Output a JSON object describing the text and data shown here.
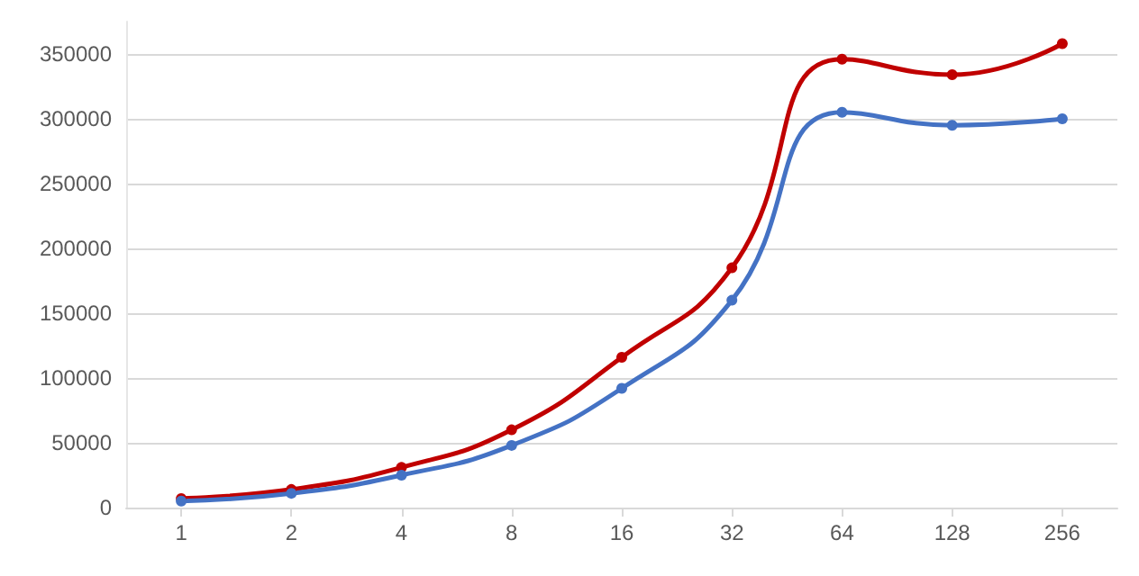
{
  "chart_data": {
    "type": "line",
    "categories": [
      "1",
      "2",
      "4",
      "8",
      "16",
      "32",
      "64",
      "128",
      "256"
    ],
    "series": [
      {
        "color": "#c00000",
        "values": [
          7000,
          14000,
          31000,
          60000,
          116000,
          185000,
          346000,
          334000,
          358000
        ]
      },
      {
        "color": "#4472c4",
        "values": [
          5000,
          11000,
          25000,
          48000,
          92000,
          160000,
          305000,
          295000,
          300000
        ]
      }
    ],
    "ylim": [
      0,
      375000
    ],
    "yticks": [
      0,
      50000,
      100000,
      150000,
      200000,
      250000,
      300000,
      350000
    ],
    "grid": "y",
    "marker": "circle",
    "line_style": "solid"
  }
}
